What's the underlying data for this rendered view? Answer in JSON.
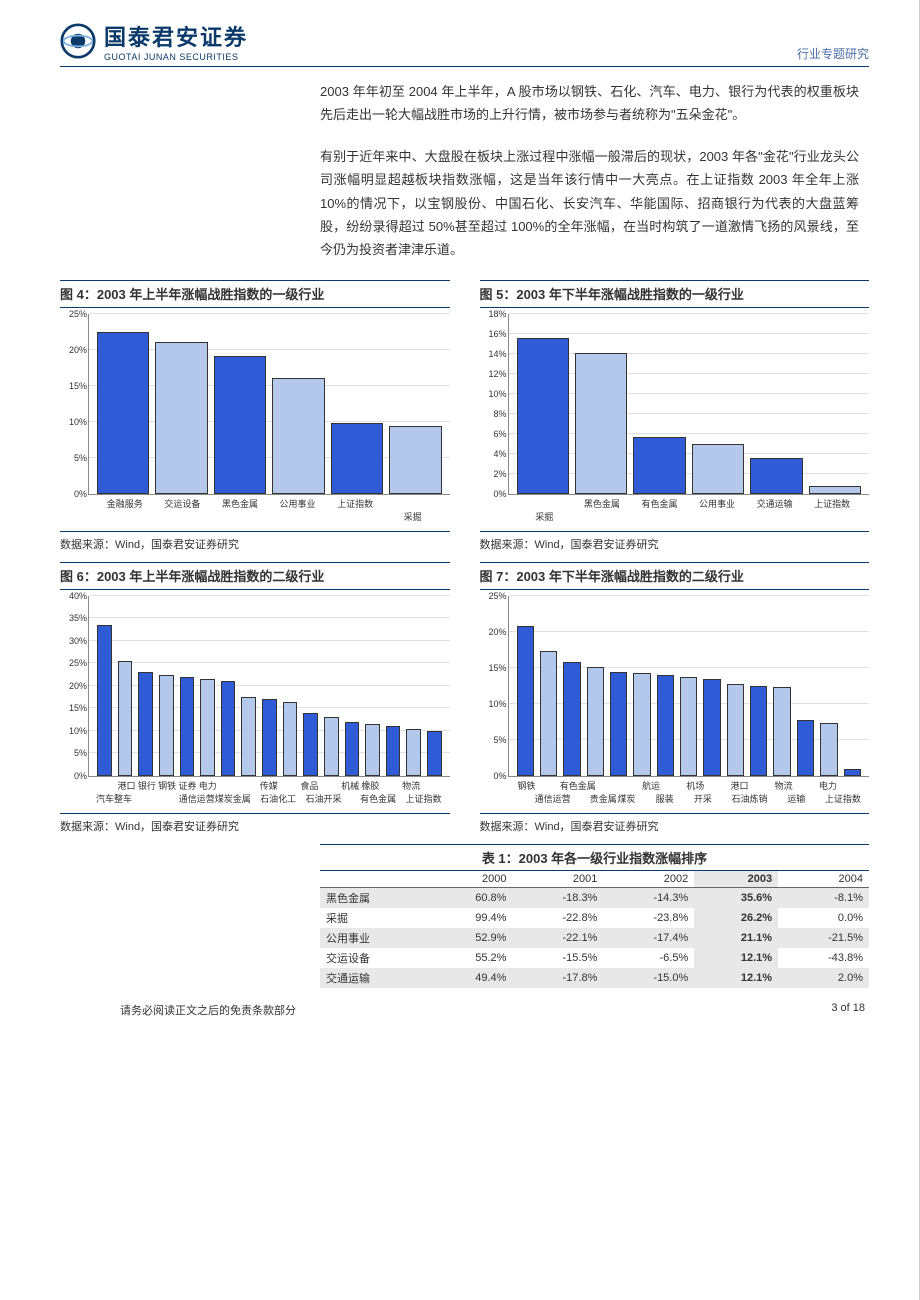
{
  "header": {
    "logo_cn": "国泰君安证券",
    "logo_en": "GUOTAI JUNAN SECURITIES",
    "right_label": "行业专题研究"
  },
  "para1": "2003 年年初至 2004 年上半年，A 股市场以钢铁、石化、汽车、电力、银行为代表的权重板块先后走出一轮大幅战胜市场的上升行情，被市场参与者统称为\"五朵金花\"。",
  "para2": "有别于近年来中、大盘股在板块上涨过程中涨幅一般滞后的现状，2003 年各\"金花\"行业龙头公司涨幅明显超越板块指数涨幅，这是当年该行情中一大亮点。在上证指数 2003 年全年上涨 10%的情况下，以宝钢股份、中国石化、长安汽车、华能国际、招商银行为代表的大盘蓝筹股，纷纷录得超过 50%甚至超过 100%的全年涨幅，在当时构筑了一道激情飞扬的风景线，至今仍为投资者津津乐道。",
  "chart4": {
    "title": "图 4：2003 年上半年涨幅战胜指数的一级行业",
    "ymax": 25,
    "ystep": 5,
    "ysuffix": "%",
    "categories": [
      "金融服务",
      "交运设备",
      "黑色金属",
      "公用事业",
      "上证指数",
      "采掘"
    ],
    "values": [
      22.2,
      20.8,
      18.9,
      15.8,
      9.6,
      9.2
    ],
    "colors": [
      "#2f5bd6",
      "#b4c8ec",
      "#2f5bd6",
      "#b4c8ec",
      "#2f5bd6",
      "#b4c8ec"
    ],
    "label_offset": [
      0,
      0,
      0,
      0,
      0,
      1
    ],
    "src": "数据来源：Wind，国泰君安证券研究"
  },
  "chart5": {
    "title": "图 5：2003 年下半年涨幅战胜指数的一级行业",
    "ymax": 18,
    "ystep": 2,
    "ysuffix": "%",
    "categories": [
      "采掘",
      "黑色金属",
      "有色金属",
      "公用事业",
      "交通运输",
      "上证指数"
    ],
    "values": [
      15.4,
      13.9,
      5.5,
      4.8,
      3.4,
      0.6
    ],
    "colors": [
      "#2f5bd6",
      "#b4c8ec",
      "#2f5bd6",
      "#b4c8ec",
      "#2f5bd6",
      "#b4c8ec"
    ],
    "label_offset": [
      1,
      0,
      0,
      0,
      0,
      0
    ],
    "src": "数据来源：Wind，国泰君安证券研究"
  },
  "chart6": {
    "title": "图 6：2003 年上半年涨幅战胜指数的二级行业",
    "ymax": 40,
    "ystep": 5,
    "ysuffix": "%",
    "categories": [
      "汽车整车",
      "港口",
      "银行",
      "钢铁",
      "证券",
      "电力",
      "通信运营",
      "煤炭金属",
      "传媒",
      "石油化工",
      "食品",
      "石油开采",
      "机械",
      "橡胶",
      "有色金属",
      "物流",
      "上证指数"
    ],
    "values": [
      33,
      25,
      22.5,
      22,
      21.5,
      21,
      20.5,
      17,
      16.5,
      16,
      13.5,
      12.5,
      11.5,
      11,
      10.5,
      10,
      9.5
    ],
    "colors": [
      "#2f5bd6",
      "#b4c8ec",
      "#2f5bd6",
      "#b4c8ec",
      "#2f5bd6",
      "#b4c8ec",
      "#2f5bd6",
      "#b4c8ec",
      "#2f5bd6",
      "#b4c8ec",
      "#2f5bd6",
      "#b4c8ec",
      "#2f5bd6",
      "#b4c8ec",
      "#2f5bd6",
      "#b4c8ec",
      "#2f5bd6"
    ],
    "label_offset": [
      1,
      0,
      0,
      0,
      0,
      0,
      1,
      1,
      0,
      1,
      0,
      1,
      0,
      0,
      1,
      0,
      1
    ],
    "src": "数据来源：Wind，国泰君安证券研究"
  },
  "chart7": {
    "title": "图 7：2003 年下半年涨幅战胜指数的二级行业",
    "ymax": 25,
    "ystep": 5,
    "ysuffix": "%",
    "categories": [
      "钢铁",
      "通信运营",
      "有色金属",
      "贵金属",
      "煤炭",
      "航运",
      "服装",
      "机场",
      "开采",
      "港口",
      "石油炼销",
      "物流",
      "运输",
      "电力",
      "上证指数"
    ],
    "values": [
      20.5,
      17,
      15.5,
      14.8,
      14.2,
      14,
      13.7,
      13.5,
      13.2,
      12.5,
      12.2,
      12,
      7.5,
      7,
      0.6
    ],
    "colors": [
      "#2f5bd6",
      "#b4c8ec",
      "#2f5bd6",
      "#b4c8ec",
      "#2f5bd6",
      "#b4c8ec",
      "#2f5bd6",
      "#b4c8ec",
      "#2f5bd6",
      "#b4c8ec",
      "#2f5bd6",
      "#b4c8ec",
      "#2f5bd6",
      "#b4c8ec",
      "#2f5bd6"
    ],
    "label_offset": [
      0,
      1,
      0,
      1,
      1,
      0,
      1,
      0,
      1,
      0,
      1,
      0,
      1,
      0,
      1
    ],
    "src": "数据来源：Wind，国泰君安证券研究"
  },
  "table1": {
    "title": "表 1：2003 年各一级行业指数涨幅排序",
    "columns": [
      "",
      "2000",
      "2001",
      "2002",
      "2003",
      "2004"
    ],
    "hl_col": 4,
    "rows": [
      {
        "hl": true,
        "cells": [
          "黑色金属",
          "60.8%",
          "-18.3%",
          "-14.3%",
          "35.6%",
          "-8.1%"
        ]
      },
      {
        "hl": false,
        "cells": [
          "采掘",
          "99.4%",
          "-22.8%",
          "-23.8%",
          "26.2%",
          "0.0%"
        ]
      },
      {
        "hl": true,
        "cells": [
          "公用事业",
          "52.9%",
          "-22.1%",
          "-17.4%",
          "21.1%",
          "-21.5%"
        ]
      },
      {
        "hl": false,
        "cells": [
          "交运设备",
          "55.2%",
          "-15.5%",
          "-6.5%",
          "12.1%",
          "-43.8%"
        ]
      },
      {
        "hl": true,
        "cells": [
          "交通运输",
          "49.4%",
          "-17.8%",
          "-15.0%",
          "12.1%",
          "2.0%"
        ]
      }
    ]
  },
  "footer": {
    "left": "请务必阅读正文之后的免责条款部分",
    "right": "3 of 18"
  }
}
